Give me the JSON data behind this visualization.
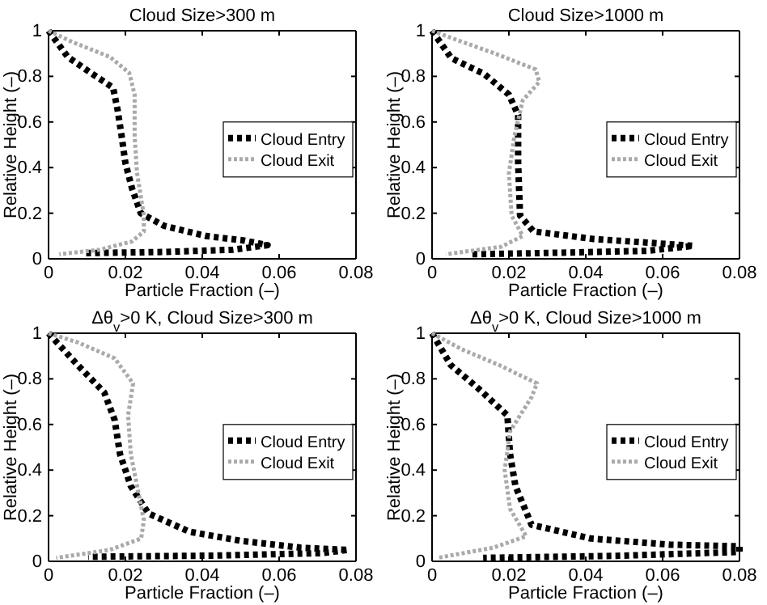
{
  "chart_data": [
    {
      "type": "line",
      "title": "Cloud Size>300 m",
      "xlabel": "Particle Fraction (–)",
      "ylabel": "Relative Height (–)",
      "xlim": [
        0,
        0.08
      ],
      "xticks": [
        0,
        0.02,
        0.04,
        0.06,
        0.08
      ],
      "ylim": [
        0,
        1
      ],
      "yticks": [
        0,
        0.2,
        0.4,
        0.6,
        0.8,
        1
      ],
      "legend": "right",
      "line_style": "dotted",
      "series": [
        {
          "name": "Cloud Entry",
          "color": "#000000",
          "x": [
            0,
            0.005,
            0.011,
            0.0168,
            0.018,
            0.019,
            0.02,
            0.0217,
            0.024,
            0.03,
            0.041,
            0.051,
            0.057,
            0.048,
            0.03,
            0.009
          ],
          "values": [
            1,
            0.885,
            0.815,
            0.75,
            0.65,
            0.54,
            0.42,
            0.31,
            0.2,
            0.145,
            0.1,
            0.08,
            0.06,
            0.04,
            0.03,
            0.025
          ]
        },
        {
          "name": "Cloud Exit",
          "color": "#aaaaaa",
          "x": [
            0,
            0.0063,
            0.016,
            0.021,
            0.0224,
            0.0224,
            0.023,
            0.0248,
            0.0248,
            0.0217,
            0.0133,
            0.0028
          ],
          "values": [
            1,
            0.95,
            0.885,
            0.815,
            0.72,
            0.54,
            0.38,
            0.19,
            0.12,
            0.076,
            0.04,
            0.02
          ]
        }
      ]
    },
    {
      "type": "line",
      "title": "Cloud Size>1000 m",
      "xlabel": "Particle Fraction (–)",
      "ylabel": "Relative Height (–)",
      "xlim": [
        0,
        0.08
      ],
      "xticks": [
        0,
        0.02,
        0.04,
        0.06,
        0.08
      ],
      "ylim": [
        0,
        1
      ],
      "yticks": [
        0,
        0.2,
        0.4,
        0.6,
        0.8,
        1
      ],
      "legend": "right",
      "line_style": "dotted",
      "series": [
        {
          "name": "Cloud Entry",
          "color": "#000000",
          "x": [
            0,
            0.005,
            0.0136,
            0.02,
            0.0224,
            0.0224,
            0.0229,
            0.0264,
            0.042,
            0.056,
            0.068,
            0.056,
            0.028,
            0.01
          ],
          "values": [
            1,
            0.88,
            0.81,
            0.72,
            0.63,
            0.42,
            0.19,
            0.12,
            0.087,
            0.071,
            0.057,
            0.035,
            0.025,
            0.02
          ]
        },
        {
          "name": "Cloud Exit",
          "color": "#aaaaaa",
          "x": [
            0,
            0.0064,
            0.0164,
            0.027,
            0.0279,
            0.0236,
            0.0214,
            0.02,
            0.0207,
            0.0236,
            0.018,
            0.0036
          ],
          "values": [
            1,
            0.96,
            0.9,
            0.83,
            0.775,
            0.695,
            0.535,
            0.375,
            0.19,
            0.1,
            0.053,
            0.02
          ]
        }
      ]
    },
    {
      "type": "line",
      "title": "Δθ$_{v}$>0 K, Cloud Size>300 m",
      "xlabel": "Particle Fraction (–)",
      "ylabel": "Relative Height (–)",
      "xlim": [
        0,
        0.08
      ],
      "xticks": [
        0,
        0.02,
        0.04,
        0.06,
        0.08
      ],
      "ylim": [
        0,
        1
      ],
      "yticks": [
        0,
        0.2,
        0.4,
        0.6,
        0.8,
        1
      ],
      "legend": "right",
      "line_style": "dotted",
      "series": [
        {
          "name": "Cloud Entry",
          "color": "#000000",
          "x": [
            0,
            0.0076,
            0.0145,
            0.0172,
            0.0186,
            0.0214,
            0.026,
            0.0366,
            0.05,
            0.0655,
            0.078,
            0.071,
            0.043,
            0.0103
          ],
          "values": [
            1,
            0.86,
            0.74,
            0.62,
            0.47,
            0.33,
            0.21,
            0.13,
            0.09,
            0.06,
            0.05,
            0.036,
            0.025,
            0.02
          ]
        },
        {
          "name": "Cloud Exit",
          "color": "#aaaaaa",
          "x": [
            0,
            0.0076,
            0.0172,
            0.022,
            0.0207,
            0.0214,
            0.0234,
            0.0248,
            0.0241,
            0.0159,
            0.002
          ],
          "values": [
            1,
            0.96,
            0.89,
            0.78,
            0.64,
            0.47,
            0.3,
            0.18,
            0.1,
            0.05,
            0.015
          ]
        }
      ]
    },
    {
      "type": "line",
      "title": "Δθ$_{v}$>0 K, Cloud Size>1000 m",
      "xlabel": "Particle Fraction (–)",
      "ylabel": "Relative Height (–)",
      "xlim": [
        0,
        0.08
      ],
      "xticks": [
        0,
        0.02,
        0.04,
        0.06,
        0.08
      ],
      "ylim": [
        0,
        1
      ],
      "yticks": [
        0,
        0.2,
        0.4,
        0.6,
        0.8,
        1
      ],
      "legend": "right",
      "line_style": "dotted",
      "series": [
        {
          "name": "Cloud Entry",
          "color": "#000000",
          "x": [
            0,
            0.0049,
            0.0119,
            0.0196,
            0.0203,
            0.0217,
            0.0259,
            0.0413,
            0.062,
            0.08,
            0.08,
            0.048,
            0.0133
          ],
          "values": [
            1,
            0.86,
            0.76,
            0.64,
            0.47,
            0.33,
            0.16,
            0.1,
            0.073,
            0.066,
            0.041,
            0.024,
            0.015
          ]
        },
        {
          "name": "Cloud Exit",
          "color": "#aaaaaa",
          "x": [
            0,
            0.0077,
            0.0175,
            0.0273,
            0.0259,
            0.0203,
            0.0189,
            0.0203,
            0.0245,
            0.016,
            0.0014
          ],
          "values": [
            1,
            0.93,
            0.86,
            0.78,
            0.72,
            0.57,
            0.4,
            0.23,
            0.11,
            0.06,
            0.015
          ]
        }
      ]
    }
  ]
}
